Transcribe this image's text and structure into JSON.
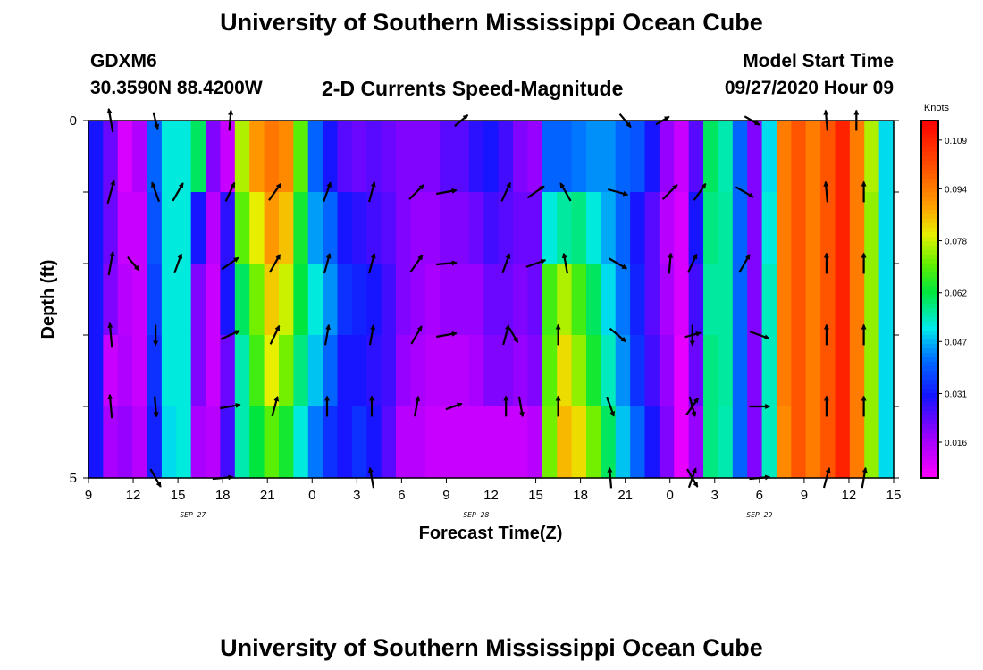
{
  "header": {
    "title_top": "University of Southern Mississippi Ocean Cube",
    "station": "GDXM6",
    "coords": "30.3590N 88.4200W",
    "plot_title": "2-D Currents Speed-Magnitude",
    "model_label": "Model Start Time",
    "model_time": "09/27/2020 Hour 09",
    "title_bottom": "University of Southern Mississippi Ocean Cube"
  },
  "chart_data": {
    "type": "heatmap",
    "title": "2-D Currents Speed-Magnitude",
    "xlabel": "Forecast Time(Z)",
    "ylabel": "Depth (ft)",
    "x_ticks": [
      "9",
      "12",
      "15",
      "18",
      "21",
      "0",
      "3",
      "6",
      "9",
      "12",
      "15",
      "18",
      "21",
      "0",
      "3",
      "6",
      "9",
      "12",
      "15"
    ],
    "date_labels": [
      {
        "label": "SEP 27",
        "hour_index": 7
      },
      {
        "label": "SEP 28",
        "hour_index": 26
      },
      {
        "label": "SEP 29",
        "hour_index": 45
      }
    ],
    "x_range_hours": [
      0,
      54
    ],
    "y_ticks": [
      "0",
      "5"
    ],
    "y_range_ft": [
      0,
      5
    ],
    "colorbar": {
      "label": "Knots",
      "ticks": [
        "0.109",
        "0.094",
        "0.078",
        "0.062",
        "0.047",
        "0.031",
        "0.016"
      ],
      "tick_values": [
        0.109,
        0.094,
        0.078,
        0.062,
        0.047,
        0.031,
        0.016
      ],
      "range": [
        0.005,
        0.115
      ]
    },
    "speed_by_hour": [
      [
        0.03,
        0.03,
        0.03,
        0.03,
        0.03
      ],
      [
        0.022,
        0.022,
        0.02,
        0.012,
        0.016
      ],
      [
        0.01,
        0.012,
        0.014,
        0.015,
        0.018
      ],
      [
        0.015,
        0.012,
        0.012,
        0.012,
        0.014
      ],
      [
        0.04,
        0.038,
        0.036,
        0.034,
        0.032
      ],
      [
        0.052,
        0.052,
        0.052,
        0.052,
        0.05
      ],
      [
        0.052,
        0.052,
        0.052,
        0.052,
        0.052
      ],
      [
        0.06,
        0.03,
        0.02,
        0.02,
        0.016
      ],
      [
        0.02,
        0.014,
        0.012,
        0.012,
        0.014
      ],
      [
        0.012,
        0.028,
        0.03,
        0.022,
        0.026
      ],
      [
        0.076,
        0.07,
        0.06,
        0.055,
        0.055
      ],
      [
        0.09,
        0.08,
        0.072,
        0.068,
        0.062
      ],
      [
        0.095,
        0.09,
        0.084,
        0.08,
        0.07
      ],
      [
        0.092,
        0.085,
        0.078,
        0.072,
        0.064
      ],
      [
        0.07,
        0.064,
        0.062,
        0.058,
        0.052
      ],
      [
        0.04,
        0.045,
        0.052,
        0.048,
        0.042
      ],
      [
        0.03,
        0.04,
        0.044,
        0.04,
        0.034
      ],
      [
        0.024,
        0.03,
        0.034,
        0.03,
        0.03
      ],
      [
        0.022,
        0.028,
        0.032,
        0.03,
        0.034
      ],
      [
        0.024,
        0.026,
        0.03,
        0.028,
        0.03
      ],
      [
        0.022,
        0.024,
        0.026,
        0.026,
        0.024
      ],
      [
        0.02,
        0.02,
        0.02,
        0.018,
        0.014
      ],
      [
        0.02,
        0.018,
        0.018,
        0.016,
        0.014
      ],
      [
        0.02,
        0.018,
        0.016,
        0.014,
        0.012
      ],
      [
        0.024,
        0.02,
        0.018,
        0.014,
        0.012
      ],
      [
        0.024,
        0.02,
        0.018,
        0.014,
        0.012
      ],
      [
        0.028,
        0.022,
        0.018,
        0.016,
        0.012
      ],
      [
        0.03,
        0.026,
        0.022,
        0.02,
        0.012
      ],
      [
        0.026,
        0.024,
        0.022,
        0.02,
        0.012
      ],
      [
        0.02,
        0.022,
        0.02,
        0.018,
        0.012
      ],
      [
        0.018,
        0.022,
        0.022,
        0.02,
        0.014
      ],
      [
        0.04,
        0.052,
        0.068,
        0.07,
        0.072
      ],
      [
        0.04,
        0.056,
        0.076,
        0.082,
        0.086
      ],
      [
        0.042,
        0.058,
        0.068,
        0.074,
        0.082
      ],
      [
        0.044,
        0.052,
        0.06,
        0.064,
        0.072
      ],
      [
        0.044,
        0.046,
        0.05,
        0.054,
        0.06
      ],
      [
        0.04,
        0.04,
        0.042,
        0.044,
        0.048
      ],
      [
        0.038,
        0.03,
        0.032,
        0.034,
        0.04
      ],
      [
        0.03,
        0.024,
        0.024,
        0.026,
        0.03
      ],
      [
        0.018,
        0.014,
        0.016,
        0.018,
        0.02
      ],
      [
        0.012,
        0.01,
        0.01,
        0.008,
        0.008
      ],
      [
        0.024,
        0.03,
        0.026,
        0.022,
        0.018
      ],
      [
        0.06,
        0.058,
        0.056,
        0.058,
        0.058
      ],
      [
        0.055,
        0.056,
        0.056,
        0.056,
        0.055
      ],
      [
        0.04,
        0.04,
        0.04,
        0.04,
        0.04
      ],
      [
        0.02,
        0.02,
        0.02,
        0.02,
        0.02
      ],
      [
        0.05,
        0.052,
        0.054,
        0.054,
        0.054
      ],
      [
        0.094,
        0.094,
        0.094,
        0.094,
        0.092
      ],
      [
        0.1,
        0.1,
        0.1,
        0.1,
        0.1
      ],
      [
        0.094,
        0.094,
        0.094,
        0.094,
        0.094
      ],
      [
        0.1,
        0.1,
        0.1,
        0.1,
        0.1
      ],
      [
        0.109,
        0.109,
        0.109,
        0.109,
        0.109
      ],
      [
        0.094,
        0.094,
        0.094,
        0.094,
        0.094
      ],
      [
        0.076,
        0.074,
        0.074,
        0.074,
        0.074
      ],
      [
        0.05,
        0.05,
        0.05,
        0.05,
        0.05
      ]
    ],
    "vectors": {
      "depths_ft": [
        0,
        1,
        2,
        3,
        4,
        5
      ],
      "rows": [
        [
          [
            1.5,
            350,
            0.7
          ],
          [
            4.5,
            165,
            0.5
          ],
          [
            9.5,
            5,
            0.6
          ],
          [
            25,
            50,
            0.5
          ],
          [
            36,
            140,
            0.5
          ],
          [
            38.5,
            60,
            0.45
          ],
          [
            44.5,
            120,
            0.5
          ],
          [
            49.5,
            355,
            0.6
          ],
          [
            51.5,
            0,
            0.6
          ]
        ],
        [
          [
            1.5,
            15,
            0.7
          ],
          [
            4.5,
            340,
            0.6
          ],
          [
            6,
            30,
            0.6
          ],
          [
            9.5,
            25,
            0.6
          ],
          [
            12.5,
            35,
            0.6
          ],
          [
            16,
            20,
            0.6
          ],
          [
            19,
            15,
            0.6
          ],
          [
            22,
            45,
            0.6
          ],
          [
            24,
            80,
            0.6
          ],
          [
            28,
            25,
            0.6
          ],
          [
            30,
            55,
            0.6
          ],
          [
            32,
            330,
            0.6
          ],
          [
            35.5,
            105,
            0.6
          ],
          [
            39,
            45,
            0.6
          ],
          [
            41,
            35,
            0.6
          ],
          [
            44,
            120,
            0.6
          ],
          [
            49.5,
            355,
            0.6
          ],
          [
            52,
            0,
            0.6
          ]
        ],
        [
          [
            1.5,
            10,
            0.7
          ],
          [
            3,
            140,
            0.5
          ],
          [
            6,
            20,
            0.6
          ],
          [
            9.5,
            55,
            0.6
          ],
          [
            12.5,
            30,
            0.6
          ],
          [
            16,
            15,
            0.6
          ],
          [
            19,
            15,
            0.6
          ],
          [
            22,
            35,
            0.6
          ],
          [
            24,
            85,
            0.6
          ],
          [
            28,
            20,
            0.6
          ],
          [
            30,
            70,
            0.6
          ],
          [
            32,
            350,
            0.6
          ],
          [
            35.5,
            120,
            0.6
          ],
          [
            39,
            5,
            0.6
          ],
          [
            40.5,
            25,
            0.6
          ],
          [
            44,
            30,
            0.6
          ],
          [
            49.5,
            0,
            0.6
          ],
          [
            52,
            0,
            0.6
          ]
        ],
        [
          [
            1.5,
            355,
            0.7
          ],
          [
            4.5,
            180,
            0.6
          ],
          [
            9.5,
            65,
            0.6
          ],
          [
            12.5,
            25,
            0.6
          ],
          [
            16,
            10,
            0.6
          ],
          [
            19,
            10,
            0.6
          ],
          [
            22,
            30,
            0.6
          ],
          [
            24,
            80,
            0.6
          ],
          [
            28,
            15,
            0.6
          ],
          [
            28.5,
            150,
            0.5
          ],
          [
            31.5,
            0,
            0.6
          ],
          [
            35.5,
            130,
            0.6
          ],
          [
            40.5,
            75,
            0.5
          ],
          [
            40.5,
            180,
            0.6
          ],
          [
            45,
            110,
            0.6
          ],
          [
            49.5,
            0,
            0.6
          ],
          [
            52,
            0,
            0.6
          ]
        ],
        [
          [
            1.5,
            355,
            0.7
          ],
          [
            4.5,
            175,
            0.6
          ],
          [
            9.5,
            80,
            0.6
          ],
          [
            12.5,
            15,
            0.6
          ],
          [
            16,
            0,
            0.6
          ],
          [
            19,
            0,
            0.6
          ],
          [
            22,
            10,
            0.6
          ],
          [
            24.5,
            70,
            0.5
          ],
          [
            28,
            0,
            0.6
          ],
          [
            29,
            170,
            0.6
          ],
          [
            31.5,
            0,
            0.6
          ],
          [
            35,
            160,
            0.6
          ],
          [
            40.5,
            35,
            0.6
          ],
          [
            40.5,
            165,
            0.6
          ],
          [
            45,
            90,
            0.6
          ],
          [
            49.5,
            0,
            0.6
          ],
          [
            52,
            0,
            0.6
          ]
        ],
        [
          [
            4.5,
            150,
            0.6
          ],
          [
            9,
            85,
            0.6
          ],
          [
            19,
            350,
            0.6
          ],
          [
            35,
            355,
            0.6
          ],
          [
            40.5,
            20,
            0.6
          ],
          [
            40.5,
            150,
            0.6
          ],
          [
            45,
            85,
            0.6
          ],
          [
            49.5,
            15,
            0.6
          ],
          [
            52,
            10,
            0.6
          ]
        ]
      ]
    }
  }
}
